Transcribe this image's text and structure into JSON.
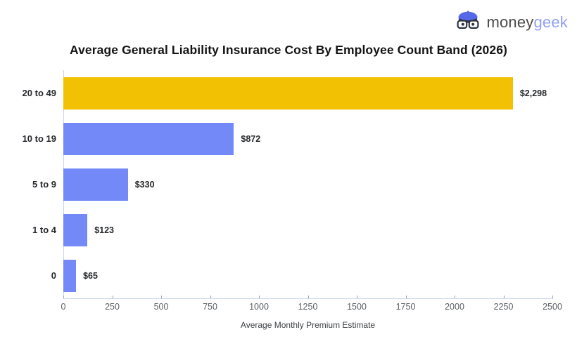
{
  "logo": {
    "brand_primary": "money",
    "brand_secondary": "geek"
  },
  "title": "Average General Liability Insurance Cost By Employee Count Band (2026)",
  "chart_data": {
    "type": "bar",
    "orientation": "horizontal",
    "title": "Average General Liability Insurance Cost By Employee Count Band (2026)",
    "categories": [
      "20 to 49",
      "10 to 19",
      "5 to 9",
      "1 to 4",
      "0"
    ],
    "values": [
      2298,
      872,
      330,
      123,
      65
    ],
    "value_labels": [
      "$2,298",
      "$872",
      "$330",
      "$123",
      "$65"
    ],
    "bar_colors": [
      "#F2C104",
      "#7389F8",
      "#7389F8",
      "#7389F8",
      "#7389F8"
    ],
    "xlabel": "Average Monthly Premium Estimate",
    "ylabel": "",
    "xlim": [
      0,
      2500
    ],
    "xticks": [
      0,
      250,
      500,
      750,
      1000,
      1250,
      1500,
      1750,
      2000,
      2250,
      2500
    ],
    "grid": false,
    "legend": "none"
  },
  "colors": {
    "highlight_bar": "#F2C104",
    "default_bar": "#7389F8",
    "axis_line": "#c9d3f0",
    "brand_primary_text": "#4a4a4a",
    "brand_secondary_text": "#93a1f1"
  }
}
